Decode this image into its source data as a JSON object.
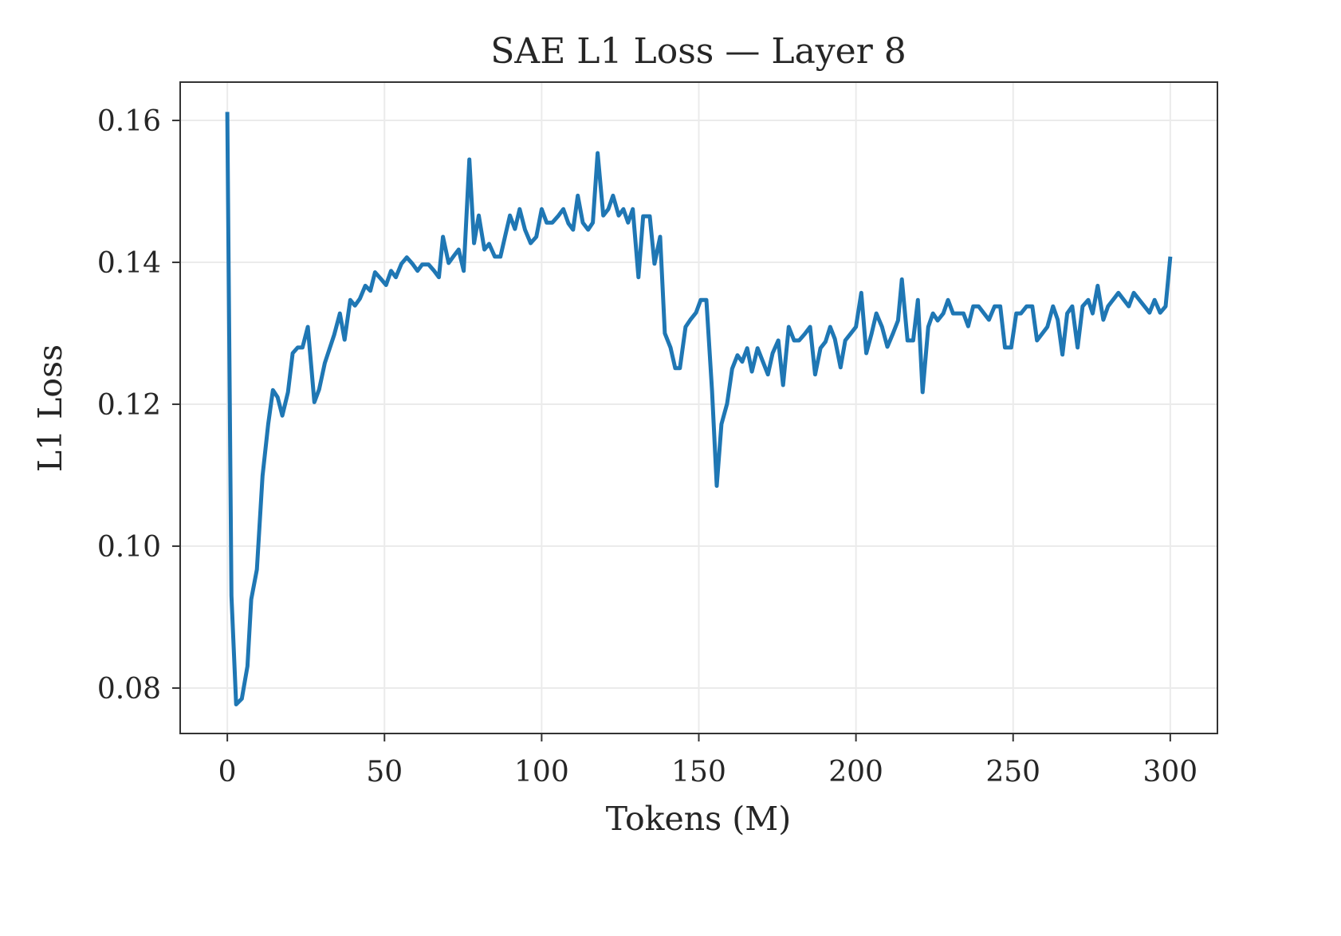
{
  "chart_data": {
    "type": "line",
    "title": "SAE L1 Loss — Layer 8",
    "xlabel": "Tokens (M)",
    "ylabel": "L1 Loss",
    "xlim": [
      -15,
      315
    ],
    "ylim": [
      0.0736,
      0.1654
    ],
    "xticks": [
      0,
      50,
      100,
      150,
      200,
      250,
      300
    ],
    "xtick_labels": [
      "0",
      "50",
      "100",
      "150",
      "200",
      "250",
      "300"
    ],
    "yticks": [
      0.08,
      0.1,
      0.12,
      0.14,
      0.16
    ],
    "ytick_labels": [
      "0.08",
      "0.10",
      "0.12",
      "0.14",
      "0.16"
    ],
    "grid": true,
    "legend": "none",
    "colors": {
      "line": "#1f77b4",
      "grid": "#ebebeb",
      "axes": "#333333",
      "text": "#262626"
    },
    "series": [
      {
        "name": "L1 Loss",
        "x": [
          0,
          1.3,
          2.8,
          4.6,
          6.4,
          7.6,
          9.4,
          11.2,
          13,
          14.5,
          16,
          17.5,
          19.3,
          20.8,
          22.4,
          23.9,
          25.6,
          27.7,
          29.2,
          31,
          34,
          35.8,
          37.3,
          39.1,
          40.6,
          42.2,
          43.9,
          45.5,
          47,
          48.8,
          50.5,
          52.1,
          53.6,
          55.4,
          57.1,
          58.9,
          60.5,
          62,
          64,
          65.8,
          67.3,
          68.6,
          70.4,
          72.2,
          73.6,
          75.2,
          77,
          78.5,
          80,
          81.8,
          83.3,
          85.1,
          86.9,
          88.4,
          89.9,
          91.5,
          93,
          94.7,
          96.5,
          98.3,
          100,
          101.6,
          103.4,
          105.2,
          106.9,
          108.5,
          110,
          111.5,
          113.1,
          114.8,
          116.3,
          117.8,
          119.6,
          121.2,
          122.7,
          124.5,
          126,
          127.5,
          129,
          130.8,
          132.3,
          134.4,
          135.9,
          137.7,
          139.2,
          141,
          142.5,
          144,
          145.8,
          147.3,
          149.1,
          150.6,
          152.4,
          154.2,
          155.7,
          157.2,
          159,
          160.6,
          162.3,
          163.8,
          165.4,
          166.9,
          168.7,
          170.4,
          172,
          173.5,
          175.3,
          176.8,
          178.6,
          180.3,
          181.9,
          183.7,
          185.4,
          187,
          188.7,
          190.3,
          191.8,
          193.3,
          195.1,
          196.6,
          198.4,
          200,
          201.7,
          203.3,
          205,
          206.5,
          208.3,
          210,
          211.8,
          213.4,
          214.6,
          216.4,
          218.2,
          219.7,
          221.2,
          223,
          224.5,
          226,
          227.8,
          229.3,
          230.9,
          234.2,
          235.7,
          237.3,
          239,
          242.3,
          244.1,
          245.9,
          247.4,
          249.4,
          251,
          252.5,
          254.3,
          256.1,
          257.6,
          260.9,
          262.7,
          264.2,
          265.7,
          267.2,
          268.8,
          270.5,
          272.1,
          273.9,
          275.3,
          276.9,
          278.7,
          280.2,
          283.5,
          286.8,
          288.4,
          293.4,
          295,
          296.8,
          298.5,
          300
        ],
        "y": [
          0.1612,
          0.093,
          0.0777,
          0.0785,
          0.0831,
          0.0925,
          0.0967,
          0.1099,
          0.1172,
          0.122,
          0.121,
          0.1184,
          0.1217,
          0.1272,
          0.128,
          0.128,
          0.1309,
          0.1203,
          0.1221,
          0.1258,
          0.1298,
          0.1328,
          0.1291,
          0.1347,
          0.1339,
          0.1349,
          0.1367,
          0.136,
          0.1386,
          0.1377,
          0.1368,
          0.1388,
          0.1379,
          0.1398,
          0.1407,
          0.1398,
          0.1388,
          0.1397,
          0.1397,
          0.1388,
          0.1379,
          0.1436,
          0.1399,
          0.141,
          0.1418,
          0.1388,
          0.1545,
          0.1427,
          0.1466,
          0.1418,
          0.1426,
          0.1408,
          0.1408,
          0.1437,
          0.1466,
          0.1447,
          0.1475,
          0.1446,
          0.1427,
          0.1436,
          0.1475,
          0.1456,
          0.1456,
          0.1465,
          0.1475,
          0.1455,
          0.1446,
          0.1494,
          0.1456,
          0.1446,
          0.1456,
          0.1554,
          0.1466,
          0.1475,
          0.1494,
          0.1466,
          0.1475,
          0.1456,
          0.1475,
          0.1379,
          0.1465,
          0.1465,
          0.1398,
          0.1436,
          0.13,
          0.128,
          0.1251,
          0.1251,
          0.1309,
          0.1319,
          0.1329,
          0.1347,
          0.1347,
          0.1219,
          0.1085,
          0.1172,
          0.1201,
          0.125,
          0.1269,
          0.126,
          0.1279,
          0.1246,
          0.1279,
          0.126,
          0.1242,
          0.1272,
          0.129,
          0.1227,
          0.1309,
          0.129,
          0.129,
          0.1299,
          0.1309,
          0.1242,
          0.1279,
          0.1288,
          0.1309,
          0.1292,
          0.1252,
          0.129,
          0.13,
          0.1309,
          0.1357,
          0.1272,
          0.13,
          0.1328,
          0.1309,
          0.1281,
          0.13,
          0.1318,
          0.1376,
          0.129,
          0.129,
          0.1347,
          0.1217,
          0.1309,
          0.1328,
          0.1318,
          0.1328,
          0.1347,
          0.1328,
          0.1328,
          0.131,
          0.1338,
          0.1338,
          0.1319,
          0.1338,
          0.1338,
          0.128,
          0.128,
          0.1328,
          0.1328,
          0.1338,
          0.1338,
          0.129,
          0.1309,
          0.1338,
          0.1319,
          0.127,
          0.1328,
          0.1338,
          0.128,
          0.1338,
          0.1347,
          0.1328,
          0.1367,
          0.1319,
          0.1338,
          0.1357,
          0.1338,
          0.1357,
          0.1329,
          0.1347,
          0.1329,
          0.1338,
          0.1408
        ]
      }
    ]
  }
}
